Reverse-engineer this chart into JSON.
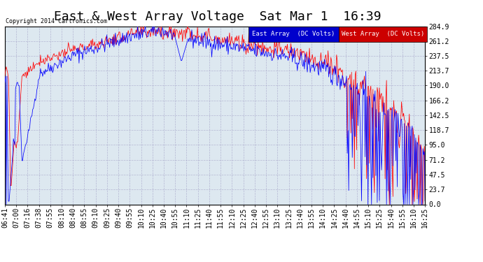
{
  "title": "East & West Array Voltage  Sat Mar 1  16:39",
  "copyright": "Copyright 2014 Cartronics.com",
  "legend_east": "East Array  (DC Volts)",
  "legend_west": "West Array  (DC Volts)",
  "east_color": "#0000ff",
  "west_color": "#ff0000",
  "legend_east_bg": "#0000cc",
  "legend_west_bg": "#cc0000",
  "background_color": "#ffffff",
  "plot_bg_color": "#dde8f0",
  "grid_color": "#aaaacc",
  "yticks": [
    0.0,
    23.7,
    47.5,
    71.2,
    95.0,
    118.7,
    142.5,
    166.2,
    190.0,
    213.7,
    237.5,
    261.2,
    284.9
  ],
  "ylim": [
    0.0,
    284.9
  ],
  "time_labels": [
    "06:41",
    "07:00",
    "07:16",
    "07:38",
    "07:55",
    "08:10",
    "08:40",
    "08:55",
    "09:10",
    "09:25",
    "09:40",
    "09:55",
    "10:10",
    "10:25",
    "10:40",
    "10:55",
    "11:10",
    "11:25",
    "11:40",
    "11:55",
    "12:10",
    "12:25",
    "12:40",
    "12:55",
    "13:10",
    "13:25",
    "13:40",
    "13:55",
    "14:10",
    "14:25",
    "14:40",
    "14:55",
    "15:10",
    "15:25",
    "15:40",
    "15:55",
    "16:10",
    "16:25"
  ],
  "title_fontsize": 13,
  "tick_fontsize": 7
}
